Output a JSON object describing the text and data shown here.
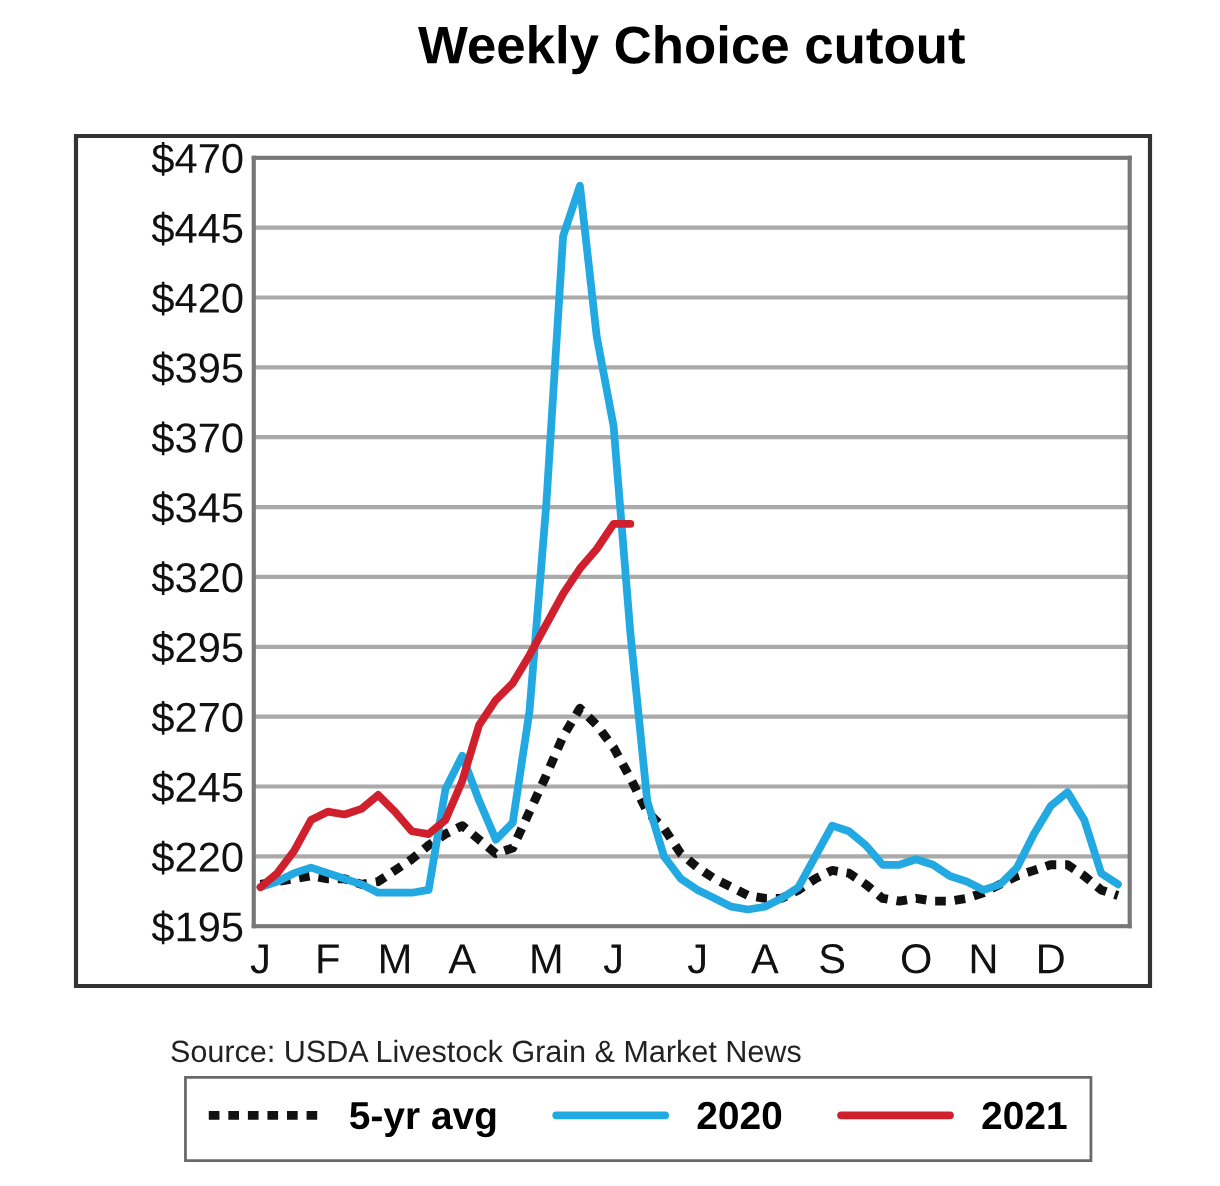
{
  "chart_data": {
    "type": "line",
    "title": "Weekly Choice cutout",
    "categories": [
      "J",
      null,
      null,
      null,
      "F",
      null,
      null,
      null,
      "M",
      null,
      null,
      null,
      "A",
      null,
      null,
      null,
      null,
      "M",
      null,
      null,
      null,
      "J",
      null,
      null,
      null,
      null,
      "J",
      null,
      null,
      null,
      "A",
      null,
      null,
      null,
      "S",
      null,
      null,
      null,
      null,
      "O",
      null,
      null,
      null,
      "N",
      null,
      null,
      null,
      "D",
      null,
      null,
      null,
      null
    ],
    "ylim": [
      195,
      470
    ],
    "yticks": [
      {
        "value": 195,
        "label": "$195"
      },
      {
        "value": 220,
        "label": "$220"
      },
      {
        "value": 245,
        "label": "$245"
      },
      {
        "value": 270,
        "label": "$270"
      },
      {
        "value": 295,
        "label": "$295"
      },
      {
        "value": 320,
        "label": "$320"
      },
      {
        "value": 345,
        "label": "$345"
      },
      {
        "value": 370,
        "label": "$370"
      },
      {
        "value": 395,
        "label": "$395"
      },
      {
        "value": 420,
        "label": "$420"
      },
      {
        "value": 445,
        "label": "$445"
      },
      {
        "value": 470,
        "label": "$470"
      }
    ],
    "grid": "y",
    "legend": "bottom",
    "annotations": [
      "Source: USDA Livestock Grain & Market News"
    ],
    "series": [
      {
        "name": "5-yr avg",
        "color": "#111111",
        "line_style": "dotted",
        "values": [
          210,
          211,
          212,
          213,
          212,
          212,
          210,
          211,
          215,
          219,
          224,
          228,
          231,
          226,
          221,
          223,
          236,
          249,
          263,
          273,
          267,
          259,
          248,
          236,
          230,
          221,
          216,
          212,
          209,
          206,
          205,
          205,
          208,
          212,
          215,
          214,
          210,
          205,
          204,
          205,
          204,
          204,
          205,
          207,
          210,
          213,
          215,
          217,
          217,
          213,
          208,
          206
        ]
      },
      {
        "name": "2020",
        "color": "#22a9e1",
        "line_style": "solid",
        "values": [
          209,
          211,
          214,
          216,
          214,
          212,
          210,
          207,
          207,
          207,
          208,
          244,
          256,
          240,
          226,
          232,
          272,
          346,
          442,
          460,
          406,
          374,
          300,
          240,
          220,
          212,
          208,
          205,
          202,
          201,
          202,
          205,
          209,
          220,
          231,
          229,
          224,
          217,
          217,
          219,
          217,
          213,
          211,
          208,
          210,
          216,
          228,
          238,
          243,
          233,
          214,
          210
        ]
      },
      {
        "name": "2021",
        "color": "#d0202e",
        "line_style": "solid",
        "values": [
          209,
          214,
          222,
          233,
          236,
          235,
          237,
          242,
          236,
          229,
          228,
          233,
          247,
          267,
          276,
          282,
          292,
          303,
          314,
          323,
          330,
          339,
          339,
          null,
          null,
          null,
          null,
          null,
          null,
          null,
          null,
          null,
          null,
          null,
          null,
          null,
          null,
          null,
          null,
          null,
          null,
          null,
          null,
          null,
          null,
          null,
          null,
          null,
          null,
          null,
          null,
          null
        ]
      }
    ]
  }
}
